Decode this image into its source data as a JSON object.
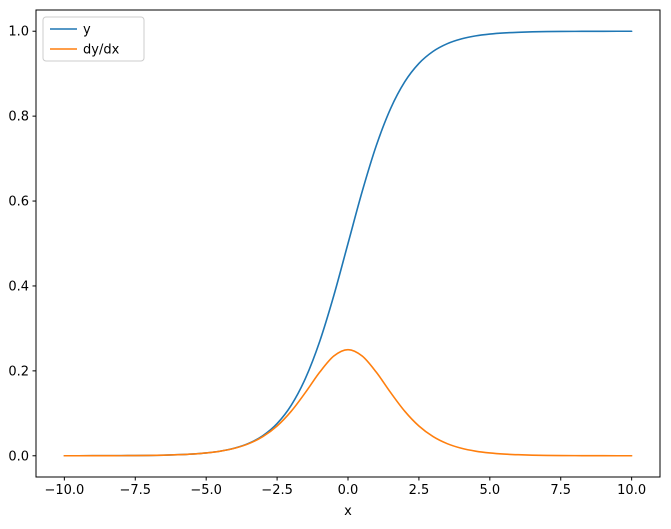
{
  "figure": {
    "background": "#ffffff"
  },
  "chart_data": {
    "type": "line",
    "title": "",
    "xlabel": "x",
    "ylabel": "",
    "xlim": [
      -11,
      11
    ],
    "ylim": [
      -0.05,
      1.05
    ],
    "grid": false,
    "legend_position": "upper left",
    "xticks": [
      -10.0,
      -7.5,
      -5.0,
      -2.5,
      0.0,
      2.5,
      5.0,
      7.5,
      10.0
    ],
    "xtick_labels": [
      "−10.0",
      "−7.5",
      "−5.0",
      "−2.5",
      "0.0",
      "2.5",
      "5.0",
      "7.5",
      "10.0"
    ],
    "yticks": [
      0.0,
      0.2,
      0.4,
      0.6,
      0.8,
      1.0
    ],
    "ytick_labels": [
      "0.0",
      "0.2",
      "0.4",
      "0.6",
      "0.8",
      "1.0"
    ],
    "x": [
      -10,
      -9.5,
      -9,
      -8.5,
      -8,
      -7.5,
      -7,
      -6.5,
      -6,
      -5.5,
      -5,
      -4.5,
      -4,
      -3.5,
      -3,
      -2.5,
      -2,
      -1.5,
      -1,
      -0.5,
      0,
      0.5,
      1,
      1.5,
      2,
      2.5,
      3,
      3.5,
      4,
      4.5,
      5,
      5.5,
      6,
      6.5,
      7,
      7.5,
      8,
      8.5,
      9,
      9.5,
      10
    ],
    "series": [
      {
        "name": "y",
        "color": "#1f77b4",
        "values": [
          4.5e-05,
          7.5e-05,
          0.000123,
          0.000203,
          0.000335,
          0.000553,
          0.000911,
          0.001501,
          0.002473,
          0.00407,
          0.006693,
          0.010987,
          0.017986,
          0.029312,
          0.047426,
          0.075858,
          0.119203,
          0.182426,
          0.268941,
          0.377541,
          0.5,
          0.622459,
          0.731059,
          0.817574,
          0.880797,
          0.924142,
          0.952574,
          0.970688,
          0.982014,
          0.989013,
          0.993307,
          0.99593,
          0.997527,
          0.998499,
          0.999089,
          0.999447,
          0.999665,
          0.999797,
          0.999877,
          0.999925,
          0.999955
        ]
      },
      {
        "name": "dy/dx",
        "color": "#ff7f0e",
        "values": [
          4.5e-05,
          7.5e-05,
          0.000123,
          0.000203,
          0.000335,
          0.000552,
          0.00091,
          0.001499,
          0.002467,
          0.004054,
          0.006648,
          0.010866,
          0.017663,
          0.028453,
          0.045177,
          0.070104,
          0.104994,
          0.149146,
          0.196612,
          0.235004,
          0.25,
          0.235004,
          0.196612,
          0.149146,
          0.104994,
          0.070104,
          0.045177,
          0.028453,
          0.017663,
          0.010866,
          0.006648,
          0.004054,
          0.002467,
          0.001499,
          0.00091,
          0.000552,
          0.000335,
          0.000203,
          0.000123,
          7.5e-05,
          4.5e-05
        ]
      }
    ]
  },
  "legend": {
    "entries": [
      {
        "label": "y",
        "color": "#1f77b4"
      },
      {
        "label": "dy/dx",
        "color": "#ff7f0e"
      }
    ]
  }
}
